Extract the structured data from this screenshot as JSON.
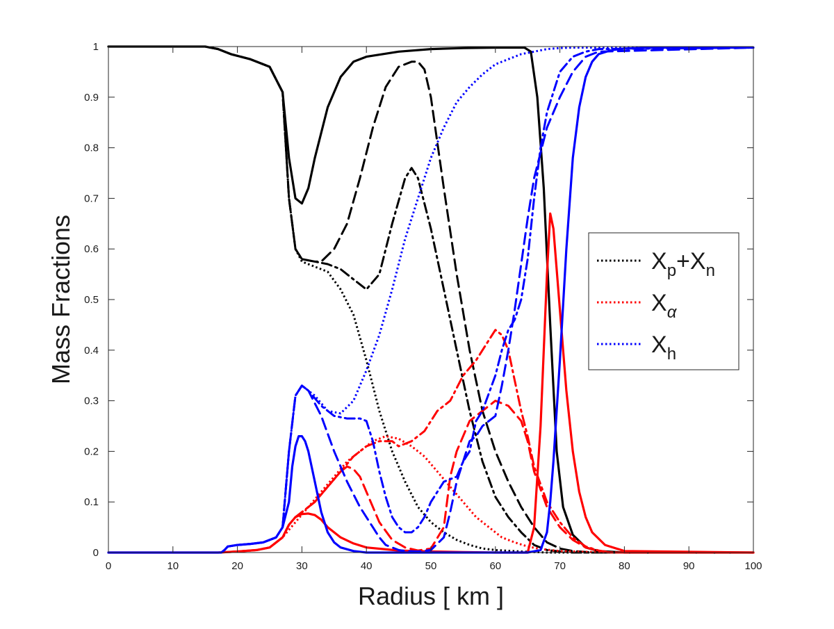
{
  "chart_data": {
    "type": "line",
    "title": "",
    "xlabel": "Radius [ km ]",
    "ylabel": "Mass Fractions",
    "xlim": [
      0,
      100
    ],
    "ylim": [
      0,
      1
    ],
    "grid": false,
    "legend_position": "right",
    "x_ticks": [
      "0",
      "10",
      "20",
      "30",
      "40",
      "50",
      "60",
      "70",
      "80",
      "90",
      "100"
    ],
    "y_ticks": [
      "0",
      "0.1",
      "0.2",
      "0.3",
      "0.4",
      "0.5",
      "0.6",
      "0.7",
      "0.8",
      "0.9",
      "1"
    ],
    "legend": [
      {
        "main": "X",
        "sub1": "p",
        "mid": "+X",
        "sub2": "n",
        "color": "#000000",
        "dash": "dotted"
      },
      {
        "main": "X",
        "sub1": "α",
        "mid": "",
        "sub2": "",
        "color": "#ff0000",
        "dash": "dotted"
      },
      {
        "main": "X",
        "sub1": "h",
        "mid": "",
        "sub2": "",
        "color": "#0000ff",
        "dash": "dotted"
      }
    ],
    "series": [
      {
        "color": "#000000",
        "dash": "solid",
        "x": [
          0,
          15,
          17,
          19,
          22,
          25,
          27,
          28,
          29,
          30,
          31,
          32,
          34,
          36,
          38,
          40,
          45,
          50,
          55,
          60,
          63,
          64.5,
          65.5,
          66.5,
          67.5,
          68.5,
          69.5,
          70.5,
          72,
          74,
          76,
          80,
          100
        ],
        "y": [
          1,
          1,
          0.995,
          0.985,
          0.975,
          0.96,
          0.91,
          0.78,
          0.7,
          0.69,
          0.72,
          0.78,
          0.88,
          0.94,
          0.97,
          0.98,
          0.99,
          0.995,
          0.997,
          0.998,
          0.998,
          0.998,
          0.99,
          0.9,
          0.72,
          0.45,
          0.2,
          0.09,
          0.035,
          0.01,
          0.003,
          0,
          0
        ]
      },
      {
        "color": "#000000",
        "dash": "dashed",
        "x": [
          0,
          15,
          17,
          19,
          22,
          25,
          27,
          28,
          29,
          30,
          32,
          33,
          35,
          37,
          39,
          41,
          43,
          45,
          47,
          48,
          49,
          50,
          52,
          54,
          56,
          58,
          60,
          62,
          64,
          66,
          68,
          70,
          72,
          75,
          100
        ],
        "y": [
          1,
          1,
          0.995,
          0.985,
          0.975,
          0.96,
          0.91,
          0.7,
          0.6,
          0.58,
          0.575,
          0.575,
          0.6,
          0.65,
          0.74,
          0.84,
          0.92,
          0.96,
          0.97,
          0.97,
          0.955,
          0.9,
          0.72,
          0.55,
          0.4,
          0.28,
          0.2,
          0.14,
          0.09,
          0.05,
          0.02,
          0.008,
          0.003,
          0,
          0
        ]
      },
      {
        "color": "#000000",
        "dash": "dashdot",
        "x": [
          0,
          15,
          17,
          19,
          22,
          25,
          27,
          28,
          29,
          30,
          32,
          34,
          36,
          38,
          40,
          42,
          44,
          46,
          47,
          48,
          50,
          52,
          54,
          56,
          58,
          60,
          62,
          64,
          66,
          68,
          70,
          72,
          100
        ],
        "y": [
          1,
          1,
          0.995,
          0.985,
          0.975,
          0.96,
          0.91,
          0.7,
          0.6,
          0.58,
          0.575,
          0.57,
          0.56,
          0.54,
          0.52,
          0.55,
          0.65,
          0.74,
          0.76,
          0.74,
          0.64,
          0.52,
          0.4,
          0.28,
          0.18,
          0.11,
          0.07,
          0.04,
          0.015,
          0.005,
          0.002,
          0,
          0
        ]
      },
      {
        "color": "#000000",
        "dash": "dotted",
        "x": [
          0,
          15,
          17,
          19,
          22,
          25,
          27,
          28,
          29,
          30,
          32,
          34,
          36,
          38,
          40,
          42,
          44,
          46,
          48,
          50,
          52,
          54,
          56,
          58,
          60,
          64,
          68,
          100
        ],
        "y": [
          1,
          1,
          0.995,
          0.985,
          0.975,
          0.96,
          0.91,
          0.7,
          0.6,
          0.575,
          0.565,
          0.555,
          0.52,
          0.47,
          0.38,
          0.28,
          0.2,
          0.14,
          0.09,
          0.06,
          0.04,
          0.025,
          0.015,
          0.008,
          0.005,
          0.002,
          0,
          0
        ]
      },
      {
        "color": "#ff0000",
        "dash": "solid",
        "x": [
          0,
          17,
          20,
          23,
          25,
          27,
          28,
          29,
          30,
          31,
          32,
          33,
          34,
          36,
          38,
          40,
          45,
          50,
          55,
          60,
          64,
          65,
          66,
          67,
          68,
          68.5,
          69,
          70,
          71,
          72,
          73,
          74,
          75,
          77,
          80,
          100
        ],
        "y": [
          0,
          0,
          0.002,
          0.005,
          0.01,
          0.03,
          0.055,
          0.07,
          0.076,
          0.077,
          0.074,
          0.065,
          0.05,
          0.03,
          0.018,
          0.01,
          0.004,
          0.002,
          0.001,
          0,
          0,
          0,
          0.05,
          0.25,
          0.55,
          0.67,
          0.64,
          0.48,
          0.32,
          0.2,
          0.12,
          0.07,
          0.04,
          0.015,
          0.003,
          0
        ]
      },
      {
        "color": "#ff0000",
        "dash": "dashed",
        "x": [
          0,
          17,
          20,
          23,
          25,
          27,
          28,
          29,
          30,
          32,
          34,
          36,
          37,
          38,
          39,
          40,
          42,
          44,
          46,
          48,
          50,
          52,
          53,
          54,
          56,
          58,
          60,
          62,
          64,
          65,
          66,
          68,
          70,
          72,
          74,
          76,
          78,
          100
        ],
        "y": [
          0,
          0,
          0.002,
          0.005,
          0.01,
          0.03,
          0.055,
          0.07,
          0.08,
          0.1,
          0.13,
          0.16,
          0.17,
          0.165,
          0.15,
          0.12,
          0.06,
          0.025,
          0.01,
          0.004,
          0.008,
          0.05,
          0.15,
          0.2,
          0.26,
          0.28,
          0.3,
          0.29,
          0.26,
          0.22,
          0.16,
          0.09,
          0.05,
          0.025,
          0.01,
          0.003,
          0,
          0
        ]
      },
      {
        "color": "#ff0000",
        "dash": "dashdot",
        "x": [
          0,
          17,
          20,
          23,
          25,
          27,
          28,
          29,
          30,
          32,
          34,
          36,
          38,
          40,
          42,
          44,
          45,
          47,
          49,
          51,
          53,
          55,
          57,
          59,
          60,
          61,
          62,
          63,
          64,
          65,
          66,
          68,
          70,
          72,
          74,
          76,
          78,
          100
        ],
        "y": [
          0,
          0,
          0.002,
          0.005,
          0.01,
          0.03,
          0.055,
          0.07,
          0.08,
          0.1,
          0.13,
          0.16,
          0.19,
          0.21,
          0.22,
          0.22,
          0.21,
          0.22,
          0.24,
          0.28,
          0.3,
          0.35,
          0.38,
          0.42,
          0.44,
          0.43,
          0.4,
          0.34,
          0.28,
          0.23,
          0.17,
          0.1,
          0.06,
          0.03,
          0.012,
          0.004,
          0,
          0
        ]
      },
      {
        "color": "#ff0000",
        "dash": "dotted",
        "x": [
          0,
          17,
          20,
          23,
          25,
          27,
          29,
          31,
          33,
          35,
          37,
          39,
          41,
          43,
          45,
          47,
          49,
          51,
          53,
          55,
          57,
          59,
          61,
          63,
          65,
          67,
          70,
          75,
          80,
          100
        ],
        "y": [
          0,
          0,
          0.002,
          0.005,
          0.01,
          0.03,
          0.06,
          0.09,
          0.12,
          0.15,
          0.18,
          0.2,
          0.22,
          0.23,
          0.225,
          0.21,
          0.19,
          0.16,
          0.13,
          0.1,
          0.07,
          0.05,
          0.03,
          0.02,
          0.012,
          0.007,
          0.003,
          0.001,
          0,
          0
        ]
      },
      {
        "color": "#0000ff",
        "dash": "solid",
        "x": [
          0,
          17.5,
          18,
          18.5,
          20,
          22,
          24,
          26,
          27,
          28,
          28.5,
          29,
          29.5,
          30,
          30.5,
          31,
          32,
          33,
          34,
          35,
          36,
          38,
          40,
          45,
          50,
          55,
          60,
          65,
          67,
          68,
          68.5,
          69,
          70,
          71,
          72,
          73,
          74,
          75,
          76,
          78,
          80,
          85,
          100
        ],
        "y": [
          0,
          0,
          0.005,
          0.012,
          0.015,
          0.017,
          0.02,
          0.03,
          0.05,
          0.1,
          0.17,
          0.21,
          0.23,
          0.23,
          0.22,
          0.2,
          0.14,
          0.08,
          0.04,
          0.02,
          0.01,
          0.003,
          0,
          0,
          0,
          0,
          0,
          0,
          0.005,
          0.04,
          0.1,
          0.18,
          0.38,
          0.6,
          0.78,
          0.88,
          0.94,
          0.97,
          0.985,
          0.993,
          0.996,
          0.998,
          0.998
        ]
      },
      {
        "color": "#0000ff",
        "dash": "dashed",
        "x": [
          0,
          17.5,
          18,
          18.5,
          20,
          22,
          24,
          26,
          27,
          28,
          29,
          30,
          31,
          33,
          35,
          37,
          39,
          41,
          42,
          43,
          44,
          45,
          46,
          48,
          50,
          52,
          53,
          54,
          55,
          56,
          57,
          58,
          60,
          61,
          62,
          63,
          64,
          65,
          66,
          68,
          70,
          72,
          74,
          76,
          100
        ],
        "y": [
          0,
          0,
          0.005,
          0.012,
          0.015,
          0.017,
          0.02,
          0.03,
          0.05,
          0.2,
          0.31,
          0.33,
          0.32,
          0.27,
          0.2,
          0.14,
          0.09,
          0.05,
          0.03,
          0.015,
          0.01,
          0.005,
          0.003,
          0.002,
          0.005,
          0.03,
          0.08,
          0.14,
          0.18,
          0.22,
          0.23,
          0.25,
          0.27,
          0.33,
          0.4,
          0.48,
          0.57,
          0.66,
          0.74,
          0.84,
          0.9,
          0.95,
          0.98,
          0.99,
          0.998
        ]
      },
      {
        "color": "#0000ff",
        "dash": "dashdot",
        "x": [
          0,
          17.5,
          18,
          18.5,
          20,
          22,
          24,
          26,
          27,
          28,
          29,
          30,
          31,
          33,
          35,
          37,
          39,
          40,
          41,
          42,
          43,
          44,
          45,
          46,
          47,
          48,
          49,
          50,
          52,
          54,
          55,
          56,
          57,
          58,
          60,
          61,
          62,
          63,
          64,
          65,
          66,
          67,
          68,
          70,
          72,
          74,
          76,
          100
        ],
        "y": [
          0,
          0,
          0.005,
          0.012,
          0.015,
          0.017,
          0.02,
          0.03,
          0.05,
          0.2,
          0.31,
          0.33,
          0.32,
          0.29,
          0.27,
          0.265,
          0.265,
          0.26,
          0.22,
          0.16,
          0.11,
          0.07,
          0.05,
          0.04,
          0.04,
          0.05,
          0.07,
          0.1,
          0.14,
          0.15,
          0.18,
          0.2,
          0.26,
          0.28,
          0.35,
          0.4,
          0.44,
          0.46,
          0.5,
          0.58,
          0.7,
          0.8,
          0.87,
          0.95,
          0.98,
          0.99,
          0.995,
          0.998
        ]
      },
      {
        "color": "#0000ff",
        "dash": "dotted",
        "x": [
          0,
          17.5,
          18,
          18.5,
          20,
          22,
          24,
          26,
          27,
          28,
          29,
          30,
          32,
          34,
          36,
          38,
          40,
          42,
          44,
          46,
          48,
          50,
          52,
          54,
          56,
          58,
          60,
          62,
          64,
          66,
          68,
          70,
          72,
          75,
          100
        ],
        "y": [
          0,
          0,
          0.005,
          0.012,
          0.015,
          0.017,
          0.02,
          0.03,
          0.05,
          0.2,
          0.31,
          0.33,
          0.31,
          0.28,
          0.275,
          0.3,
          0.36,
          0.43,
          0.52,
          0.62,
          0.7,
          0.78,
          0.84,
          0.89,
          0.92,
          0.945,
          0.965,
          0.975,
          0.985,
          0.99,
          0.995,
          0.997,
          0.998,
          0.998,
          0.998
        ]
      }
    ]
  }
}
